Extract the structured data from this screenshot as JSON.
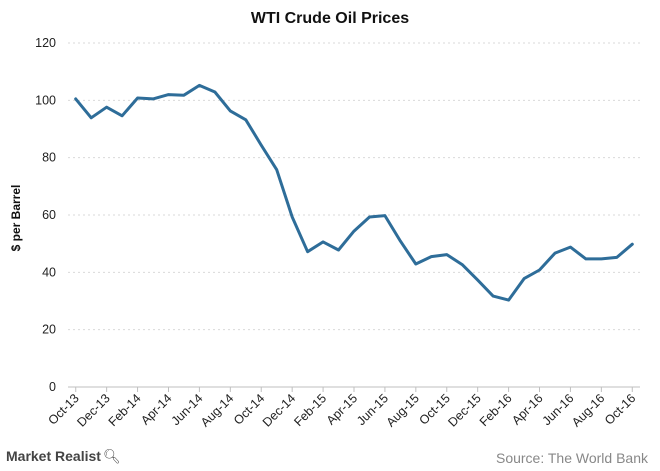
{
  "chart_data": {
    "type": "line",
    "title": "WTI Crude Oil Prices",
    "ylabel": "$ per Barrel",
    "xlabel": "",
    "ylim": [
      0,
      120
    ],
    "yticks": [
      0,
      20,
      40,
      60,
      80,
      100,
      120
    ],
    "grid": true,
    "x": [
      "Oct-13",
      "Nov-13",
      "Dec-13",
      "Jan-14",
      "Feb-14",
      "Mar-14",
      "Apr-14",
      "May-14",
      "Jun-14",
      "Jul-14",
      "Aug-14",
      "Sep-14",
      "Oct-14",
      "Nov-14",
      "Dec-14",
      "Jan-15",
      "Feb-15",
      "Mar-15",
      "Apr-15",
      "May-15",
      "Jun-15",
      "Jul-15",
      "Aug-15",
      "Sep-15",
      "Oct-15",
      "Nov-15",
      "Dec-15",
      "Jan-16",
      "Feb-16",
      "Mar-16",
      "Apr-16",
      "May-16",
      "Jun-16",
      "Jul-16",
      "Aug-16",
      "Sep-16",
      "Oct-16"
    ],
    "xtick_labels": [
      "Oct-13",
      "Dec-13",
      "Feb-14",
      "Apr-14",
      "Jun-14",
      "Aug-14",
      "Oct-14",
      "Dec-14",
      "Feb-15",
      "Apr-15",
      "Jun-15",
      "Aug-15",
      "Oct-15",
      "Dec-15",
      "Feb-16",
      "Apr-16",
      "Jun-16",
      "Aug-16",
      "Oct-16"
    ],
    "series": [
      {
        "values": [
          100.5,
          93.9,
          97.6,
          94.6,
          100.8,
          100.5,
          102.0,
          101.8,
          105.2,
          102.9,
          96.3,
          93.2,
          84.4,
          75.8,
          59.3,
          47.2,
          50.6,
          47.8,
          54.4,
          59.3,
          59.8,
          50.9,
          42.9,
          45.5,
          46.2,
          42.7,
          37.3,
          31.7,
          30.3,
          37.8,
          40.8,
          46.7,
          48.8,
          44.7,
          44.7,
          45.2,
          49.8
        ]
      }
    ]
  },
  "footer": {
    "brand": "Market Realist",
    "source": "Source: The World Bank"
  },
  "colors": {
    "line": "#2e6d99",
    "grid": "#d9d9d9"
  }
}
